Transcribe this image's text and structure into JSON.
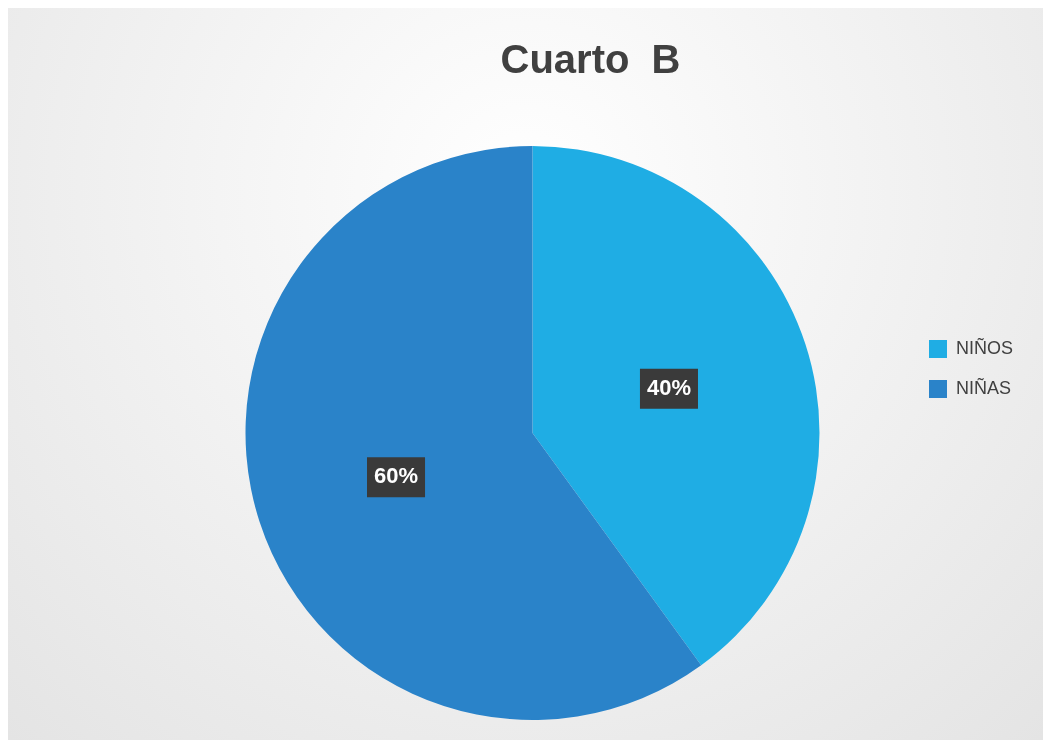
{
  "chart_data": {
    "type": "pie",
    "title": "Cuarto  B",
    "categories": [
      "NIÑOS",
      "NIÑAS"
    ],
    "values": [
      40,
      60
    ],
    "colors": [
      "#1fade4",
      "#2a83c9"
    ],
    "value_labels": [
      "40%",
      "60%"
    ],
    "legend": "right"
  }
}
